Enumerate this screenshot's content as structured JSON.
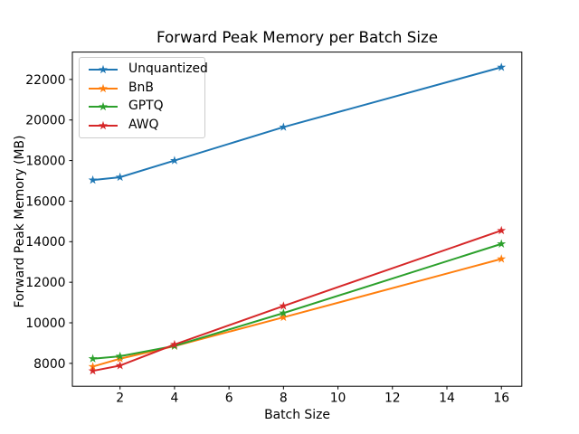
{
  "chart_data": {
    "type": "line",
    "title": "Forward Peak Memory per Batch Size",
    "xlabel": "Batch Size",
    "ylabel": "Forward Peak Memory (MB)",
    "marker": "star",
    "grid": false,
    "legend_position": "upper-left",
    "x": [
      1,
      2,
      4,
      8,
      16
    ],
    "series": [
      {
        "name": "Unquantized",
        "color": "#1f77b4",
        "values": [
          17040,
          17180,
          18000,
          19650,
          22600
        ]
      },
      {
        "name": "BnB",
        "color": "#ff7f0e",
        "values": [
          7840,
          8230,
          8850,
          10270,
          13150
        ]
      },
      {
        "name": "GPTQ",
        "color": "#2ca02c",
        "values": [
          8230,
          8350,
          8860,
          10480,
          13890
        ]
      },
      {
        "name": "AWQ",
        "color": "#d62728",
        "values": [
          7630,
          7890,
          8930,
          10830,
          14550
        ]
      }
    ],
    "xlim": [
      0.25,
      16.75
    ],
    "ylim": [
      6871,
      23349
    ],
    "xticks": [
      2,
      4,
      6,
      8,
      10,
      12,
      14,
      16
    ],
    "yticks": [
      8000,
      10000,
      12000,
      14000,
      16000,
      18000,
      20000,
      22000
    ],
    "axes_color": "#000000",
    "background_color": "#ffffff"
  }
}
